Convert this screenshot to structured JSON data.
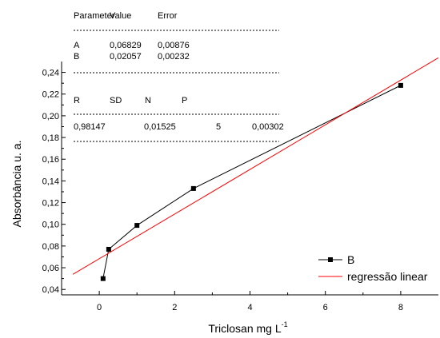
{
  "chart_data": {
    "type": "scatter",
    "xlabel": "Triclosan mg L",
    "xlabel_sup": "-1",
    "ylabel": "Absorbância u. a.",
    "xlim": [
      -1,
      9
    ],
    "ylim": [
      0.035,
      0.25
    ],
    "x_ticks": [
      0,
      2,
      4,
      6,
      8
    ],
    "x_tick_labels": [
      "0",
      "2",
      "4",
      "6",
      "8"
    ],
    "y_ticks": [
      0.04,
      0.06,
      0.08,
      0.1,
      0.12,
      0.14,
      0.16,
      0.18,
      0.2,
      0.22,
      0.24
    ],
    "y_tick_labels": [
      "0,04",
      "0,06",
      "0,08",
      "0,10",
      "0,12",
      "0,14",
      "0,16",
      "0,18",
      "0,20",
      "0,22",
      "0,24"
    ],
    "grid": false,
    "legend_position": "bottom-right",
    "series": [
      {
        "name": "B",
        "color": "#000000",
        "marker": "square",
        "line": "connected",
        "x": [
          0.1,
          0.25,
          1.0,
          2.5,
          8.0
        ],
        "y": [
          0.05,
          0.077,
          0.099,
          0.133,
          0.228
        ]
      },
      {
        "name": "regressão linear",
        "color": "#ff0000",
        "marker": "none",
        "line": "straight",
        "intercept": 0.06829,
        "slope": 0.02057,
        "x_range": [
          -0.7,
          9.0
        ]
      }
    ],
    "stats_table": {
      "header": [
        "Parameter",
        "Value",
        "Error"
      ],
      "rows": [
        [
          "A",
          "0,06829",
          "0,00876"
        ],
        [
          "B",
          "0,02057",
          "0,00232"
        ]
      ],
      "header2": [
        "R",
        "SD",
        "N",
        "P"
      ],
      "row2": [
        "0,98147",
        "0,01525",
        "5",
        "0,00302"
      ]
    }
  }
}
